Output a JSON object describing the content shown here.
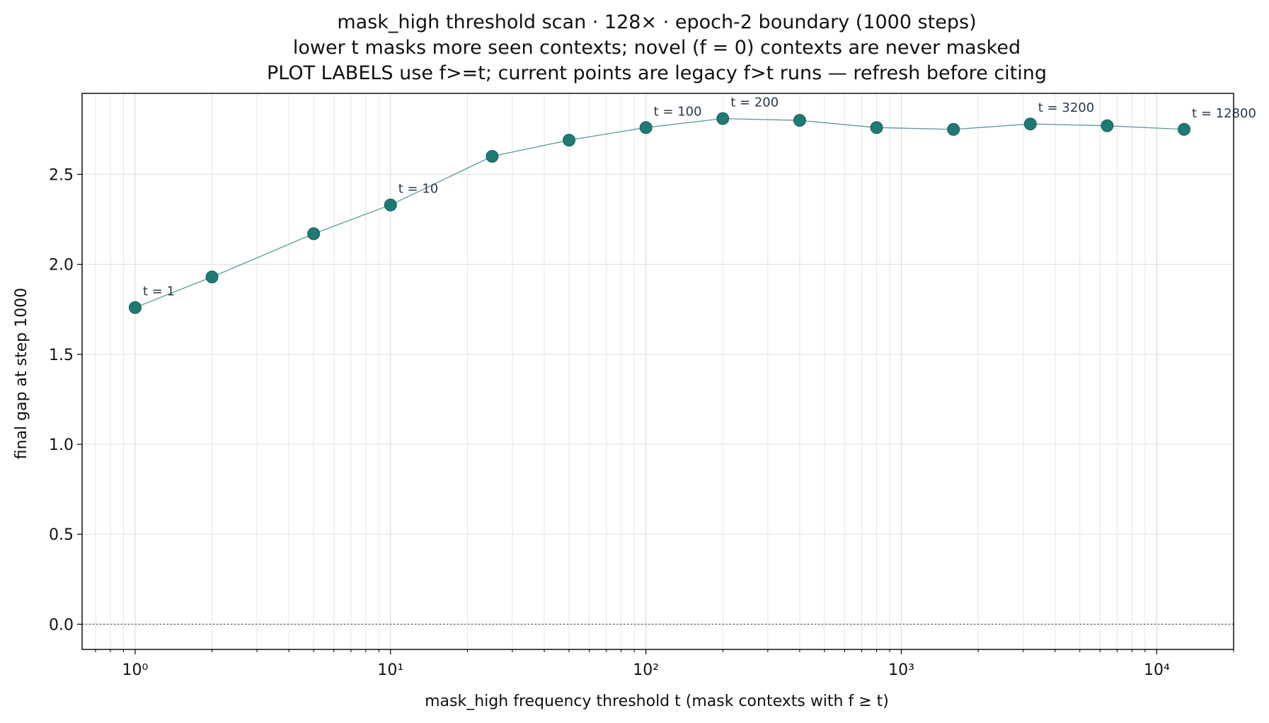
{
  "chart_data": {
    "type": "line",
    "title_lines": [
      "mask_high threshold scan · 128× · epoch-2 boundary (1000 steps)",
      "lower t masks more seen contexts; novel (f = 0) contexts are never masked",
      "PLOT LABELS use f>=t; current points are legacy f>t runs — refresh before citing"
    ],
    "xlabel": "mask_high frequency threshold t (mask contexts with f ≥ t)",
    "ylabel": "final gap at step 1000",
    "xscale": "log",
    "xlim": [
      0.62,
      20000
    ],
    "ylim": [
      -0.14,
      2.95
    ],
    "x_ticks": [
      1,
      10,
      100,
      1000,
      10000
    ],
    "x_tick_labels": [
      "10⁰",
      "10¹",
      "10²",
      "10³",
      "10⁴"
    ],
    "y_ticks": [
      0.0,
      0.5,
      1.0,
      1.5,
      2.0,
      2.5
    ],
    "y_tick_labels": [
      "0.0",
      "0.5",
      "1.0",
      "1.5",
      "2.0",
      "2.5"
    ],
    "grid": true,
    "reference_line_y": 0.0,
    "series": [
      {
        "x": [
          1,
          2,
          5,
          10,
          25,
          50,
          100,
          200,
          400,
          800,
          1600,
          3200,
          6400,
          12800
        ],
        "y": [
          1.76,
          1.93,
          2.17,
          2.33,
          2.6,
          2.69,
          2.76,
          2.81,
          2.8,
          2.76,
          2.75,
          2.78,
          2.77,
          2.75
        ],
        "color": "#1f7a74"
      }
    ],
    "annotations": [
      {
        "x": 1,
        "text": "t = 1"
      },
      {
        "x": 10,
        "text": "t = 10"
      },
      {
        "x": 100,
        "text": "t = 100"
      },
      {
        "x": 200,
        "text": "t = 200"
      },
      {
        "x": 3200,
        "text": "t = 3200"
      },
      {
        "x": 12800,
        "text": "t = 12800"
      }
    ]
  }
}
